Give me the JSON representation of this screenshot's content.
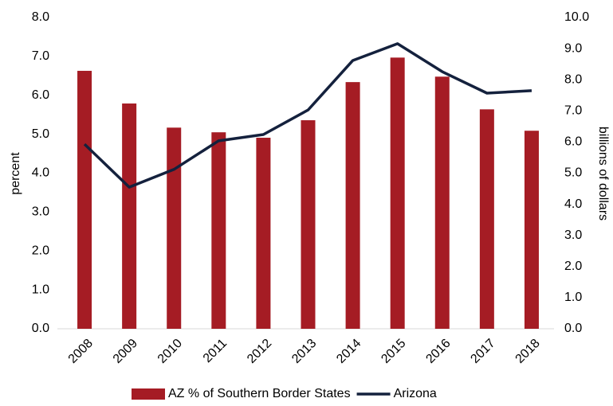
{
  "chart_data": {
    "type": "bar_line",
    "categories": [
      "2008",
      "2009",
      "2010",
      "2011",
      "2012",
      "2013",
      "2014",
      "2015",
      "2016",
      "2017",
      "2018"
    ],
    "y_label": "percent",
    "y2_label": "billions of dollars",
    "series": [
      {
        "name": "AZ % of Southern Border States",
        "type": "bar",
        "color": "#a51c24",
        "axis": "y",
        "values": [
          6.63,
          5.79,
          5.17,
          5.05,
          4.91,
          5.36,
          6.34,
          6.97,
          6.48,
          5.64,
          5.09
        ]
      },
      {
        "name": "Arizona",
        "type": "line",
        "color": "#14213d",
        "axis": "y2",
        "values": [
          5.93,
          4.55,
          5.12,
          6.04,
          6.24,
          7.03,
          8.62,
          9.16,
          8.26,
          7.57,
          7.65
        ]
      }
    ],
    "ylim": [
      0,
      8
    ],
    "yticks": [
      {
        "value": 0,
        "label": "0.0"
      },
      {
        "value": 1,
        "label": "1.0"
      },
      {
        "value": 2,
        "label": "2.0"
      },
      {
        "value": 3,
        "label": "3.0"
      },
      {
        "value": 4,
        "label": "4.0"
      },
      {
        "value": 5,
        "label": "5.0"
      },
      {
        "value": 6,
        "label": "6.0"
      },
      {
        "value": 7,
        "label": "7.0"
      },
      {
        "value": 8,
        "label": "8.0"
      }
    ],
    "y2lim": [
      0,
      10
    ],
    "y2ticks": [
      {
        "value": 0,
        "label": "0.0"
      },
      {
        "value": 1,
        "label": "1.0"
      },
      {
        "value": 2,
        "label": "2.0"
      },
      {
        "value": 3,
        "label": "3.0"
      },
      {
        "value": 4,
        "label": "4.0"
      },
      {
        "value": 5,
        "label": "5.0"
      },
      {
        "value": 6,
        "label": "6.0"
      },
      {
        "value": 7,
        "label": "7.0"
      },
      {
        "value": 8,
        "label": "8.0"
      },
      {
        "value": 9,
        "label": "9.0"
      },
      {
        "value": 10,
        "label": "10.0"
      }
    ],
    "grid": false
  }
}
